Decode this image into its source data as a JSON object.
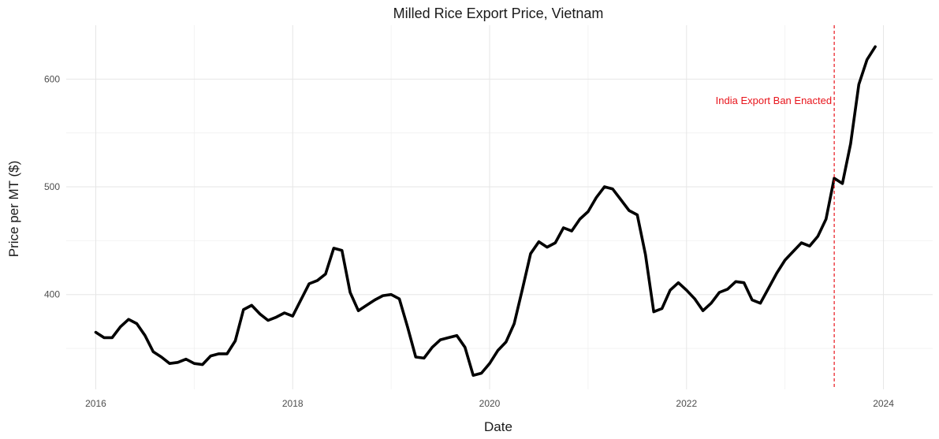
{
  "chart_data": {
    "type": "line",
    "title": "Milled Rice Export Price, Vietnam",
    "xlabel": "Date",
    "ylabel": "Price per MT ($)",
    "x_tick_labels": [
      "2016",
      "2018",
      "2020",
      "2022",
      "2024"
    ],
    "y_tick_labels": [
      "400",
      "500",
      "600"
    ],
    "grid": true,
    "line_color": "#000000",
    "annotation": {
      "text": "India Export Ban Enacted",
      "date": "2023-07",
      "color": "#e8141b",
      "line_style": "dashed"
    },
    "series": [
      {
        "x": [
          "2016-01",
          "2016-02",
          "2016-03",
          "2016-04",
          "2016-05",
          "2016-06",
          "2016-07",
          "2016-08",
          "2016-09",
          "2016-10",
          "2016-11",
          "2016-12",
          "2017-01",
          "2017-02",
          "2017-03",
          "2017-04",
          "2017-05",
          "2017-06",
          "2017-07",
          "2017-08",
          "2017-09",
          "2017-10",
          "2017-11",
          "2017-12",
          "2018-01",
          "2018-02",
          "2018-03",
          "2018-04",
          "2018-05",
          "2018-06",
          "2018-07",
          "2018-08",
          "2018-09",
          "2018-10",
          "2018-11",
          "2018-12",
          "2019-01",
          "2019-02",
          "2019-03",
          "2019-04",
          "2019-05",
          "2019-06",
          "2019-07",
          "2019-08",
          "2019-09",
          "2019-10",
          "2019-11",
          "2019-12",
          "2020-01",
          "2020-02",
          "2020-03",
          "2020-04",
          "2020-05",
          "2020-06",
          "2020-07",
          "2020-08",
          "2020-09",
          "2020-10",
          "2020-11",
          "2020-12",
          "2021-01",
          "2021-02",
          "2021-03",
          "2021-04",
          "2021-05",
          "2021-06",
          "2021-07",
          "2021-08",
          "2021-09",
          "2021-10",
          "2021-11",
          "2021-12",
          "2022-01",
          "2022-02",
          "2022-03",
          "2022-04",
          "2022-05",
          "2022-06",
          "2022-07",
          "2022-08",
          "2022-09",
          "2022-10",
          "2022-11",
          "2022-12",
          "2023-01",
          "2023-02",
          "2023-03",
          "2023-04",
          "2023-05",
          "2023-06",
          "2023-07",
          "2023-08",
          "2023-09",
          "2023-10",
          "2023-11",
          "2023-12"
        ],
        "y": [
          365,
          360,
          360,
          370,
          377,
          373,
          362,
          347,
          342,
          336,
          337,
          340,
          336,
          335,
          343,
          345,
          345,
          357,
          386,
          390,
          382,
          376,
          379,
          383,
          380,
          395,
          410,
          413,
          419,
          443,
          441,
          402,
          385,
          390,
          395,
          399,
          400,
          396,
          370,
          342,
          341,
          351,
          358,
          360,
          362,
          351,
          325,
          327,
          336,
          348,
          356,
          373,
          405,
          438,
          449,
          444,
          448,
          462,
          459,
          470,
          477,
          490,
          500,
          498,
          488,
          478,
          474,
          437,
          384,
          387,
          404,
          411,
          404,
          396,
          385,
          392,
          402,
          405,
          412,
          411,
          395,
          392,
          406,
          420,
          432,
          440,
          448,
          445,
          454,
          470,
          508,
          503,
          540,
          595,
          618,
          630
        ]
      }
    ]
  }
}
